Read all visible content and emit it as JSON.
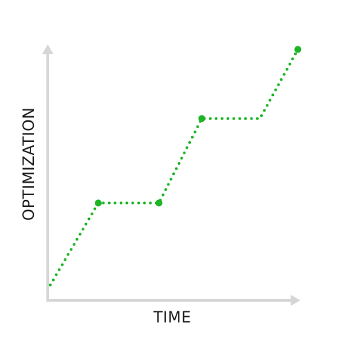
{
  "chart_data": {
    "type": "line",
    "title": "",
    "xlabel": "TIME",
    "ylabel": "OPTIMIZATION",
    "xlim": [
      0,
      10
    ],
    "ylim": [
      0,
      10
    ],
    "grid": false,
    "tick_labels": false,
    "series": [
      {
        "line_style": "dotted",
        "points": [
          {
            "x": 0.1,
            "y": 0.6,
            "marker": false
          },
          {
            "x": 2.0,
            "y": 3.8,
            "marker": true
          },
          {
            "x": 4.4,
            "y": 3.8,
            "marker": true
          },
          {
            "x": 6.1,
            "y": 7.1,
            "marker": true
          },
          {
            "x": 8.4,
            "y": 7.1,
            "marker": false
          },
          {
            "x": 9.9,
            "y": 9.8,
            "marker": true
          }
        ]
      }
    ]
  },
  "colors": {
    "series": "#1db526",
    "axis": "#d6d6d6",
    "label": "#1a1a1a"
  }
}
